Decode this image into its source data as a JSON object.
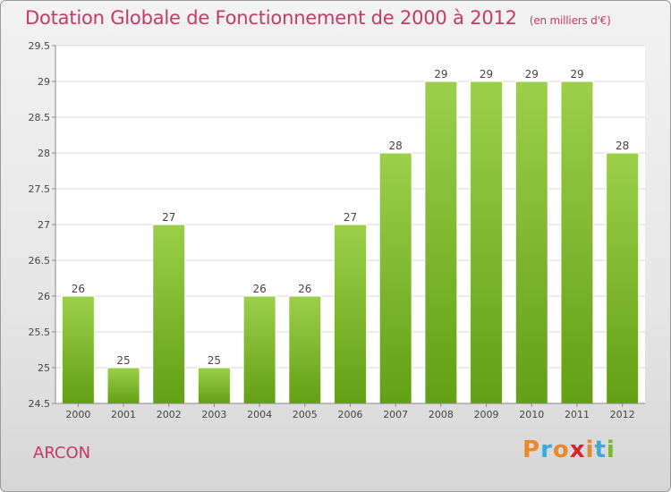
{
  "header": {
    "title": "Dotation Globale de Fonctionnement de 2000 à 2012",
    "unit": "(en milliers d'€)"
  },
  "footer": {
    "commune": "ARCON",
    "logo_text": "Proxiti",
    "logo_colors": [
      "#e8892b",
      "#3aa8d8",
      "#e8892b",
      "#d8242a",
      "#e8892b",
      "#3aa8d8",
      "#78b833"
    ]
  },
  "colors": {
    "title": "#c8386a",
    "bar_top": "#9ccf4a",
    "bar_bottom": "#62a015",
    "grid": "#d9d9d9"
  },
  "chart_data": {
    "type": "bar",
    "title": "Dotation Globale de Fonctionnement de 2000 à 2012",
    "subtitle": "(en milliers d'€)",
    "xlabel": "",
    "ylabel": "",
    "categories": [
      "2000",
      "2001",
      "2002",
      "2003",
      "2004",
      "2005",
      "2006",
      "2007",
      "2008",
      "2009",
      "2010",
      "2011",
      "2012"
    ],
    "values": [
      26,
      25,
      27,
      25,
      26,
      26,
      27,
      28,
      29,
      29,
      29,
      29,
      28
    ],
    "data_labels": [
      "26",
      "25",
      "27",
      "25",
      "26",
      "26",
      "27",
      "28",
      "29",
      "29",
      "29",
      "29",
      "28"
    ],
    "ylim": [
      24.5,
      29.5
    ],
    "yticks": [
      24.5,
      25,
      25.5,
      26,
      26.5,
      27,
      27.5,
      28,
      28.5,
      29,
      29.5
    ],
    "ytick_labels": [
      "24.5",
      "25",
      "25.5",
      "26",
      "26.5",
      "27",
      "27.5",
      "28",
      "28.5",
      "29",
      "29.5"
    ],
    "grid": true,
    "legend": "none"
  }
}
